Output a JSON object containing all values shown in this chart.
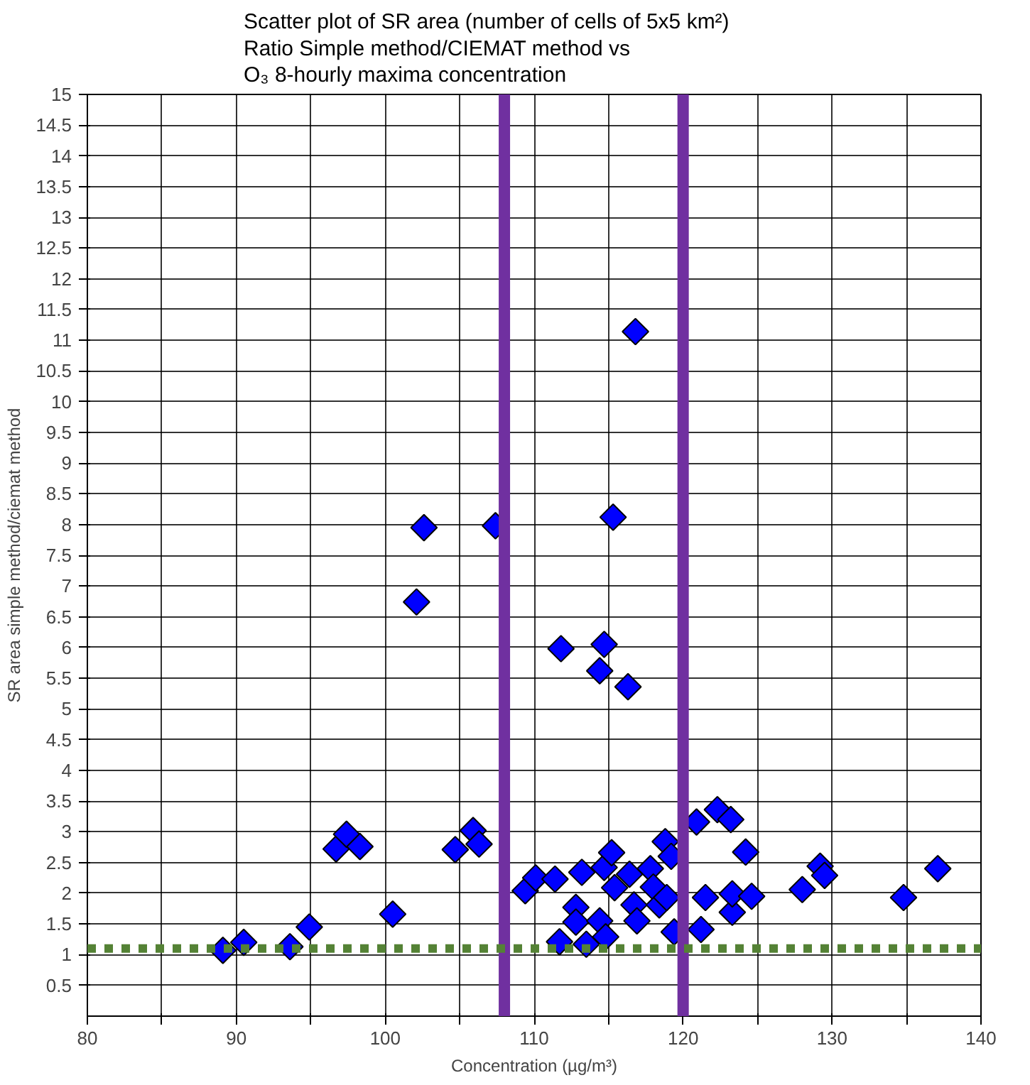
{
  "chart_data": {
    "type": "scatter",
    "title": "Scatter plot of SR area (number of cells of 5x5 km²)\nRatio Simple method/CIEMAT method vs\nO₃ 8-hourly maxima concentration",
    "xlabel": "Concentration (µg/m³)",
    "ylabel": "SR area simple method/ciemat method",
    "x": [
      116.8,
      115.3,
      107.4,
      102.6,
      102.1,
      111.8,
      114.7,
      114.4,
      116.3,
      89.1,
      90.5,
      93.6,
      94.9,
      96.7,
      97.4,
      98.3,
      100.5,
      104.7,
      105.9,
      106.3,
      109.4,
      110.1,
      111.4,
      111.7,
      112.8,
      112.8,
      113.2,
      113.5,
      114.4,
      114.7,
      115.2,
      115.4,
      114.8,
      116.4,
      116.7,
      116.9,
      117.8,
      118.0,
      118.4,
      118.8,
      118.9,
      119.2,
      119.4,
      120.9,
      121.2,
      121.5,
      122.3,
      123.2,
      123.3,
      124.2,
      123.3,
      124.6,
      128.0,
      129.2,
      129.5,
      134.8,
      137.1
    ],
    "series": [
      {
        "color": "#0000ff",
        "values": [
          11.14,
          8.12,
          7.98,
          7.95,
          6.74,
          5.98,
          6.05,
          5.62,
          5.36,
          1.07,
          1.2,
          1.13,
          1.45,
          2.72,
          2.96,
          2.76,
          1.66,
          2.71,
          3.02,
          2.8,
          2.04,
          2.25,
          2.23,
          1.21,
          1.77,
          1.53,
          2.34,
          1.17,
          1.55,
          2.42,
          2.66,
          2.09,
          1.29,
          2.31,
          1.81,
          1.55,
          2.4,
          2.1,
          1.81,
          2.84,
          1.93,
          2.6,
          1.37,
          3.16,
          1.41,
          1.93,
          3.36,
          3.2,
          1.69,
          2.67,
          1.99,
          1.95,
          2.06,
          2.44,
          2.29,
          1.93,
          2.4
        ]
      }
    ],
    "marker": "diamond",
    "grid": true,
    "xlim": [
      80,
      140
    ],
    "xticks": [
      80,
      {
        "value": 85,
        "label": null
      },
      90,
      {
        "value": 95,
        "label": null
      },
      100,
      {
        "value": 105,
        "label": null
      },
      110,
      {
        "value": 115,
        "label": null
      },
      120,
      {
        "value": 125,
        "label": null
      },
      130,
      {
        "value": 135,
        "label": null
      },
      140
    ],
    "ylim": [
      0,
      15
    ],
    "yticks": [
      0.5,
      1,
      1.5,
      2,
      2.5,
      3,
      3.5,
      4,
      4.5,
      5,
      5.5,
      6,
      6.5,
      7,
      7.5,
      8,
      8.5,
      9,
      9.5,
      10,
      10.5,
      11,
      11.5,
      12,
      12.5,
      13,
      13.5,
      14,
      14.5,
      15
    ],
    "ref_lines": [
      {
        "axis": "x",
        "value": 108,
        "label": null,
        "color": "#7030a0",
        "line_style": "solid"
      },
      {
        "axis": "x",
        "value": 120,
        "label": null,
        "color": "#7030a0",
        "line_style": "solid"
      },
      {
        "axis": "y",
        "value": 1.1,
        "label": null,
        "color": "#548235",
        "line_style": "dotted"
      }
    ]
  }
}
